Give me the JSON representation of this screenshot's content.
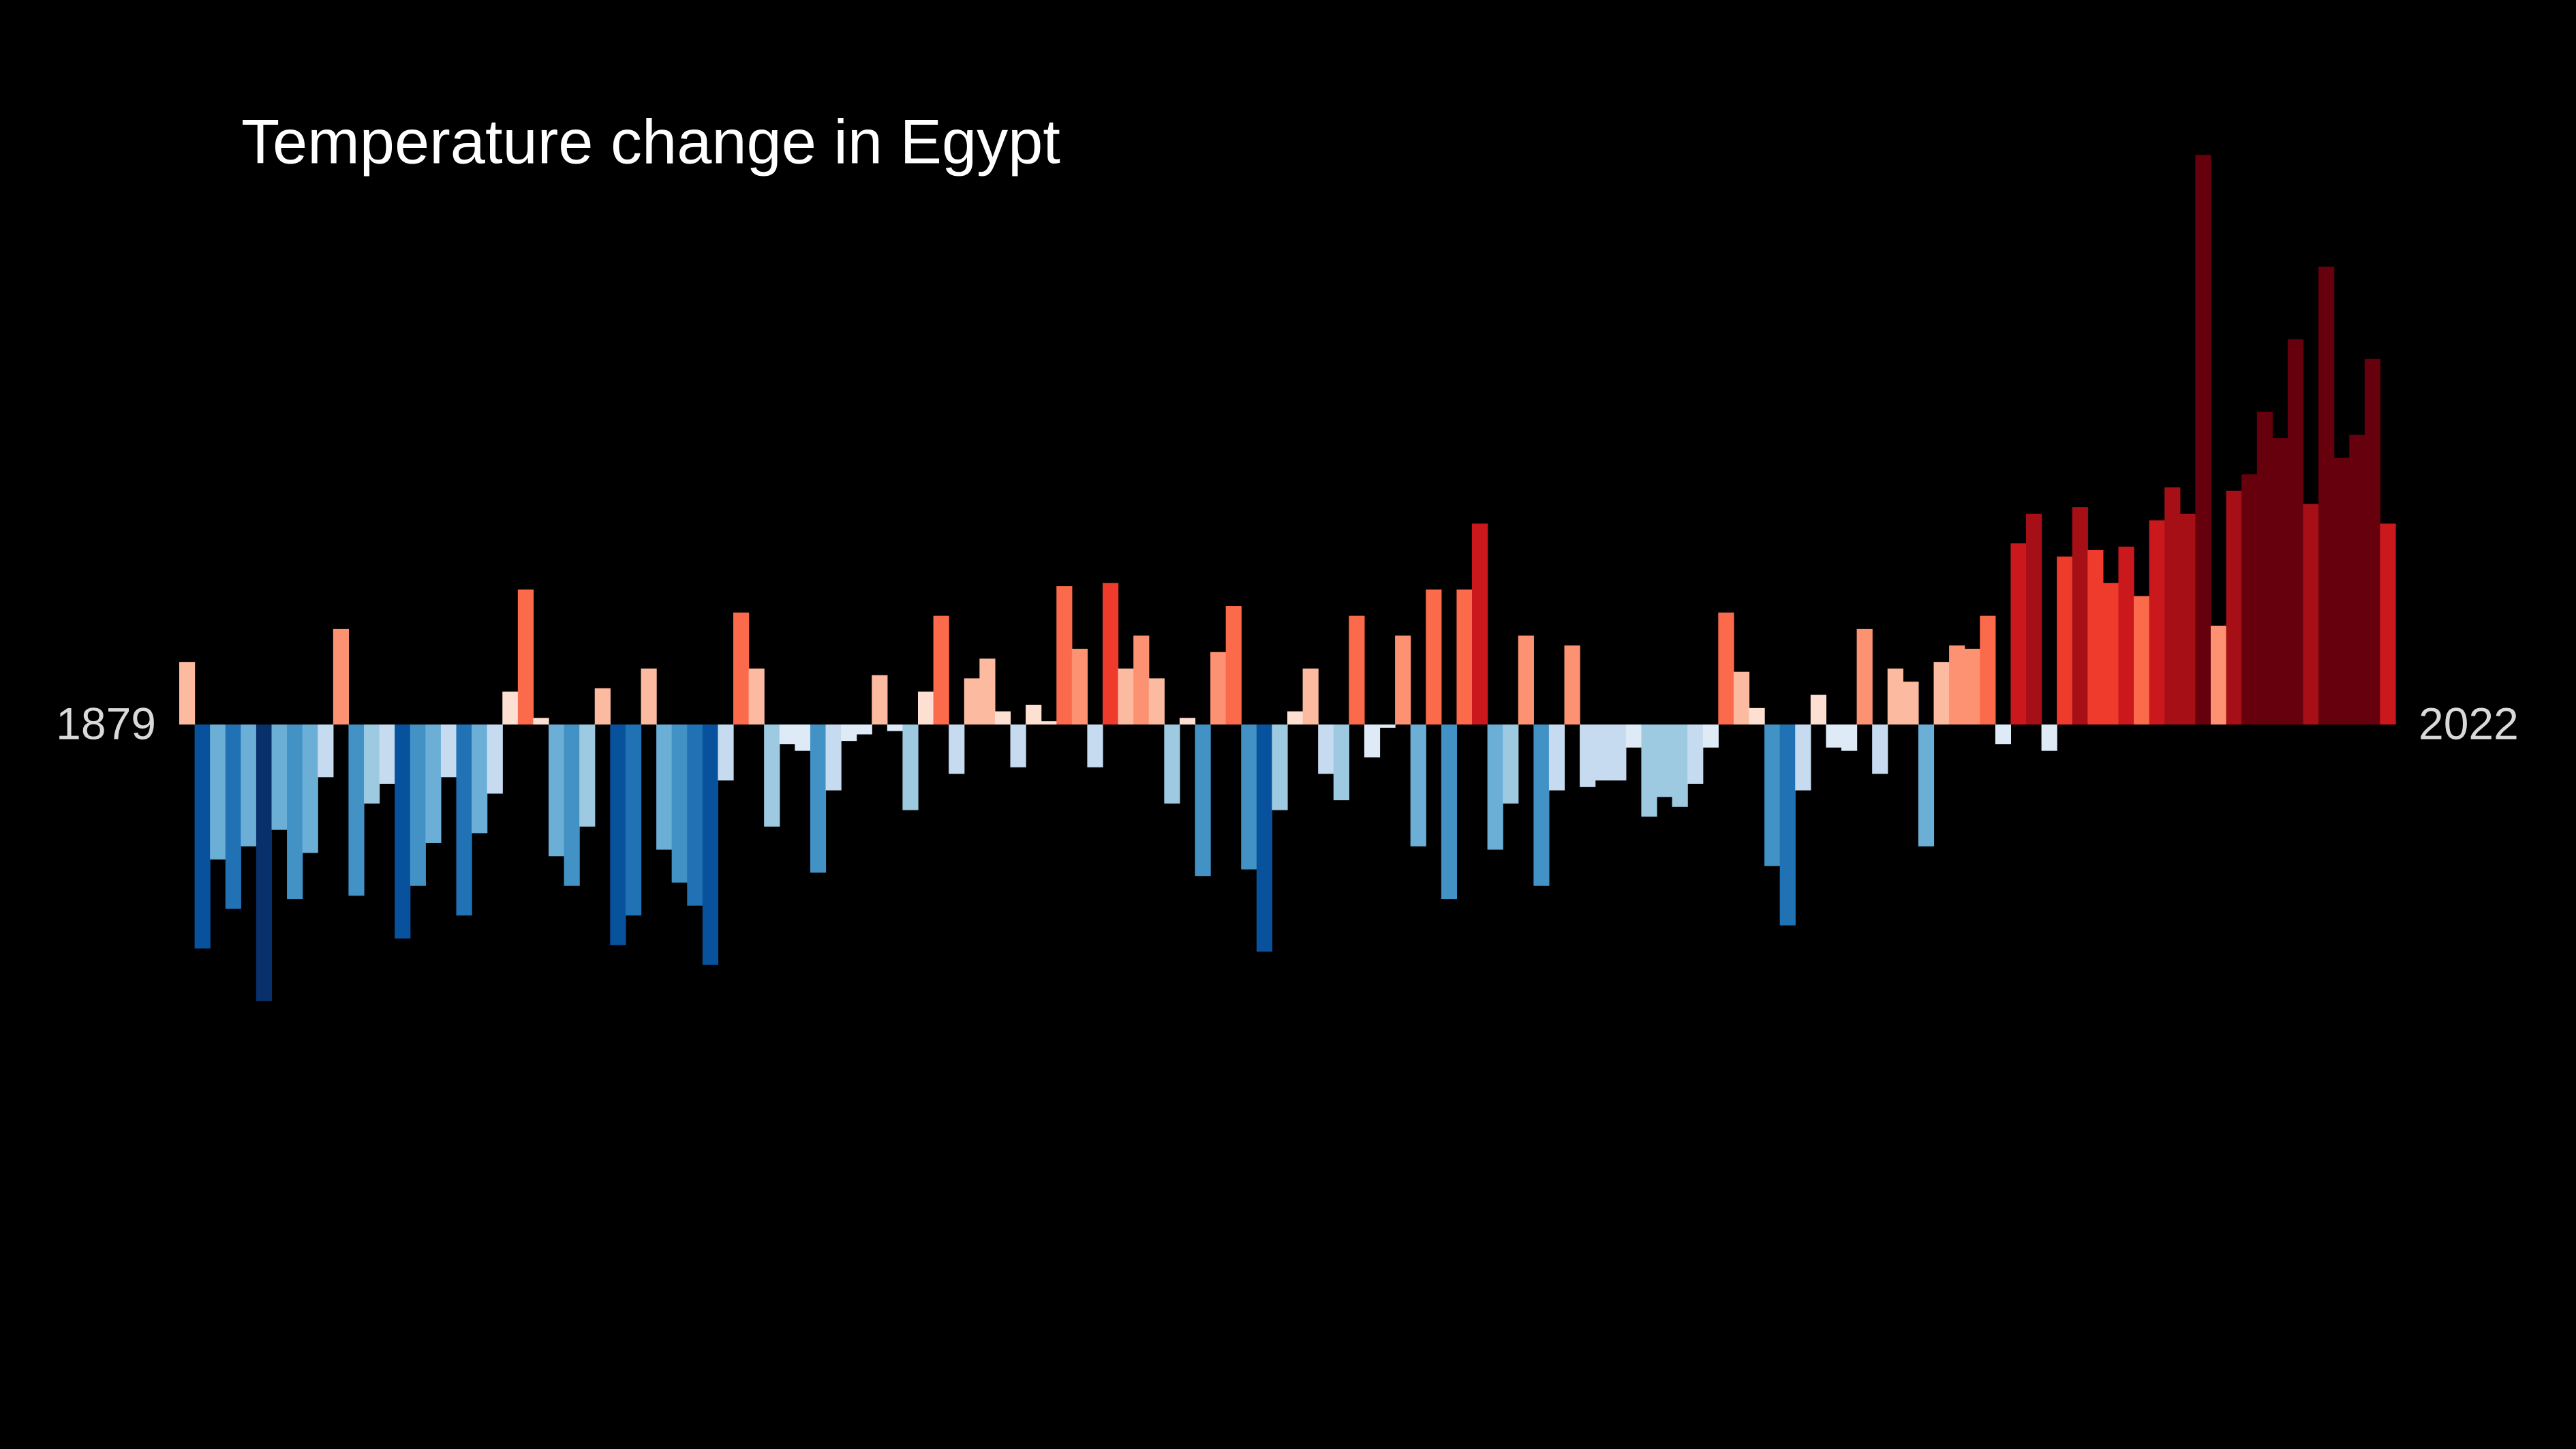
{
  "chart_data": {
    "type": "bar",
    "title": "Temperature change in Egypt",
    "categories": [
      "1879",
      null,
      null,
      null,
      null,
      null,
      null,
      null,
      null,
      null,
      null,
      null,
      null,
      null,
      null,
      null,
      null,
      null,
      null,
      null,
      null,
      null,
      null,
      null,
      null,
      null,
      null,
      null,
      null,
      null,
      null,
      null,
      null,
      null,
      null,
      null,
      null,
      null,
      null,
      null,
      null,
      null,
      null,
      null,
      null,
      null,
      null,
      null,
      null,
      null,
      null,
      null,
      null,
      null,
      null,
      null,
      null,
      null,
      null,
      null,
      null,
      null,
      null,
      null,
      null,
      null,
      null,
      null,
      null,
      null,
      null,
      null,
      null,
      null,
      null,
      null,
      null,
      null,
      null,
      null,
      null,
      null,
      null,
      null,
      null,
      null,
      null,
      null,
      null,
      null,
      null,
      null,
      null,
      null,
      null,
      null,
      null,
      null,
      null,
      null,
      null,
      null,
      null,
      null,
      null,
      null,
      null,
      null,
      null,
      null,
      null,
      null,
      null,
      null,
      null,
      null,
      null,
      null,
      null,
      null,
      null,
      null,
      null,
      null,
      null,
      null,
      null,
      null,
      null,
      null,
      null,
      null,
      null,
      null,
      null,
      null,
      null,
      null,
      null,
      null,
      null,
      null,
      null,
      "2022"
    ],
    "values": [
      0.19,
      -0.68,
      -0.41,
      -0.56,
      -0.37,
      -0.84,
      -0.32,
      -0.53,
      -0.39,
      -0.16,
      0.29,
      -0.52,
      -0.24,
      -0.18,
      -0.65,
      -0.49,
      -0.36,
      -0.16,
      -0.58,
      -0.33,
      -0.21,
      0.1,
      0.41,
      0.02,
      -0.4,
      -0.49,
      -0.31,
      0.11,
      -0.67,
      -0.58,
      0.17,
      -0.38,
      -0.48,
      -0.55,
      -0.73,
      -0.17,
      0.34,
      0.17,
      -0.31,
      -0.06,
      -0.08,
      -0.45,
      -0.2,
      -0.05,
      -0.03,
      0.15,
      -0.02,
      -0.26,
      0.1,
      0.33,
      -0.15,
      0.14,
      0.2,
      0.04,
      -0.13,
      0.06,
      0.01,
      0.42,
      0.23,
      -0.13,
      0.43,
      0.17,
      0.27,
      0.14,
      -0.24,
      0.02,
      -0.46,
      0.22,
      0.36,
      -0.44,
      -0.69,
      -0.26,
      0.04,
      0.17,
      -0.15,
      -0.23,
      0.33,
      -0.1,
      -0.01,
      0.27,
      -0.37,
      0.41,
      -0.53,
      0.41,
      0.61,
      -0.38,
      -0.24,
      0.27,
      -0.49,
      -0.2,
      0.24,
      -0.19,
      -0.17,
      -0.17,
      -0.07,
      -0.28,
      -0.22,
      -0.25,
      -0.18,
      -0.07,
      0.34,
      0.16,
      0.05,
      -0.43,
      -0.61,
      -0.2,
      0.09,
      -0.07,
      -0.08,
      0.29,
      -0.15,
      0.17,
      0.13,
      -0.37,
      0.19,
      0.24,
      0.23,
      0.33,
      -0.06,
      0.55,
      0.64,
      -0.08,
      0.51,
      0.66,
      0.53,
      0.43,
      0.54,
      0.39,
      0.62,
      0.72,
      0.64,
      1.73,
      0.3,
      0.71,
      0.76,
      0.95,
      0.87,
      1.17,
      0.67,
      1.39,
      0.81,
      0.88,
      1.11,
      0.61
    ],
    "palette": [
      "#08306b",
      "#08519c",
      "#2171b5",
      "#4292c6",
      "#6baed6",
      "#9ecae1",
      "#c6dbef",
      "#deebf7",
      "#fee0d2",
      "#fcbba1",
      "#fc9272",
      "#fb6a4a",
      "#ef3b2c",
      "#cb181d",
      "#a50f15",
      "#67000d"
    ],
    "ylim": [
      -2.2,
      2.2
    ]
  }
}
